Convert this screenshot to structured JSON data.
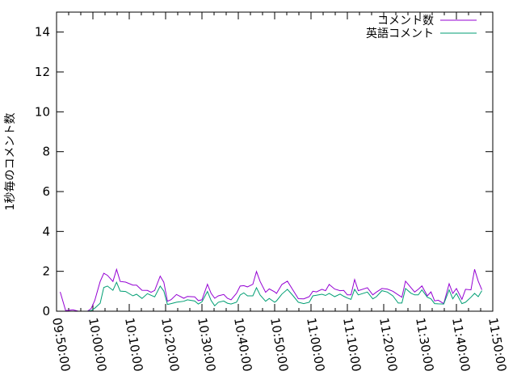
{
  "chart_data": {
    "type": "line",
    "title": "",
    "xlabel": "",
    "ylabel": "1秒毎のコメント数",
    "xlim": [
      "09:50:00",
      "11:50:00"
    ],
    "ylim": [
      0,
      15
    ],
    "x_ticks": [
      "09:50:00",
      "10:00:00",
      "10:10:00",
      "10:20:00",
      "10:30:00",
      "10:40:00",
      "10:50:00",
      "11:00:00",
      "11:10:00",
      "11:20:00",
      "11:30:00",
      "11:40:00",
      "11:50:00"
    ],
    "y_ticks": [
      0,
      2,
      4,
      6,
      8,
      10,
      12,
      14
    ],
    "grid": false,
    "legend_position": "top-right",
    "x": [
      "09:51:00",
      "09:52:30",
      "09:54:30",
      "09:56:00",
      "09:58:30",
      "09:59:30",
      "10:00:30",
      "10:02:00",
      "10:03:00",
      "10:04:00",
      "10:05:30",
      "10:06:30",
      "10:07:30",
      "10:09:00",
      "10:11:00",
      "10:12:00",
      "10:13:30",
      "10:15:00",
      "10:16:00",
      "10:17:00",
      "10:18:30",
      "10:19:30",
      "10:20:30",
      "10:21:30",
      "10:23:00",
      "10:25:00",
      "10:26:00",
      "10:28:00",
      "10:29:00",
      "10:30:00",
      "10:31:30",
      "10:32:30",
      "10:33:30",
      "10:34:30",
      "10:36:00",
      "10:37:00",
      "10:38:00",
      "10:39:30",
      "10:40:30",
      "10:41:30",
      "10:42:30",
      "10:44:00",
      "10:45:00",
      "10:46:00",
      "10:47:30",
      "10:48:30",
      "10:50:00",
      "10:50:30",
      "10:52:00",
      "10:53:30",
      "10:55:00",
      "10:56:30",
      "10:58:00",
      "10:59:30",
      "11:00:30",
      "11:01:30",
      "11:03:00",
      "11:04:00",
      "11:05:00",
      "11:06:30",
      "11:08:00",
      "11:09:00",
      "11:10:00",
      "11:11:00",
      "11:12:00",
      "11:13:00",
      "11:15:30",
      "11:17:00",
      "11:18:00",
      "11:19:30",
      "11:21:00",
      "11:22:30",
      "11:24:00",
      "11:25:00",
      "11:26:00",
      "11:27:30",
      "11:28:30",
      "11:29:30",
      "11:30:30",
      "11:32:00",
      "11:33:00",
      "11:34:00",
      "11:35:00",
      "11:36:30",
      "11:38:00",
      "11:39:00",
      "11:40:00",
      "11:41:30",
      "11:42:30",
      "11:44:00",
      "11:45:00",
      "11:46:00",
      "11:47:00"
    ],
    "series": [
      {
        "name": "コメント数",
        "color": "#9400d3",
        "values": [
          0.97,
          0.03,
          0.07,
          0,
          0,
          0.13,
          0.54,
          1.49,
          1.9,
          1.8,
          1.49,
          2.1,
          1.49,
          1.46,
          1.31,
          1.31,
          1.05,
          1.04,
          0.95,
          1.04,
          1.76,
          1.45,
          0.5,
          0.58,
          0.84,
          0.65,
          0.74,
          0.72,
          0.53,
          0.57,
          1.35,
          0.9,
          0.65,
          0.77,
          0.84,
          0.65,
          0.57,
          0.9,
          1.26,
          1.28,
          1.22,
          1.35,
          1.99,
          1.49,
          0.95,
          1.12,
          0.97,
          0.89,
          1.34,
          1.51,
          1.07,
          0.63,
          0.62,
          0.73,
          1.0,
          0.97,
          1.1,
          1.03,
          1.34,
          1.11,
          1.03,
          1.04,
          0.82,
          0.82,
          1.59,
          1.03,
          1.18,
          0.82,
          0.96,
          1.14,
          1.11,
          1.0,
          0.82,
          0.7,
          1.51,
          1.18,
          0.96,
          1.1,
          1.27,
          0.77,
          0.97,
          0.52,
          0.55,
          0.38,
          1.38,
          0.89,
          1.14,
          0.59,
          1.1,
          1.07,
          2.1,
          1.51,
          1.07
        ]
      },
      {
        "name": "英語コメント",
        "color": "#009e73",
        "values": [
          0,
          0,
          0,
          0,
          0,
          0.03,
          0.15,
          0.4,
          1.19,
          1.26,
          1.05,
          1.45,
          1.01,
          0.99,
          0.77,
          0.85,
          0.64,
          0.88,
          0.8,
          0.72,
          1.26,
          1.01,
          0.34,
          0.38,
          0.45,
          0.5,
          0.57,
          0.51,
          0.36,
          0.47,
          0.99,
          0.54,
          0.27,
          0.45,
          0.51,
          0.4,
          0.36,
          0.45,
          0.81,
          0.92,
          0.77,
          0.77,
          1.18,
          0.81,
          0.5,
          0.64,
          0.45,
          0.52,
          0.86,
          1.1,
          0.79,
          0.45,
          0.38,
          0.45,
          0.77,
          0.8,
          0.85,
          0.79,
          0.89,
          0.73,
          0.86,
          0.75,
          0.66,
          0.59,
          1.1,
          0.82,
          0.96,
          0.62,
          0.73,
          1.03,
          0.96,
          0.77,
          0.41,
          0.41,
          1.14,
          0.9,
          0.82,
          0.82,
          1.07,
          0.7,
          0.62,
          0.38,
          0.37,
          0.36,
          1.07,
          0.62,
          0.89,
          0.38,
          0.45,
          0.7,
          0.89,
          0.73,
          1.03
        ]
      }
    ]
  }
}
